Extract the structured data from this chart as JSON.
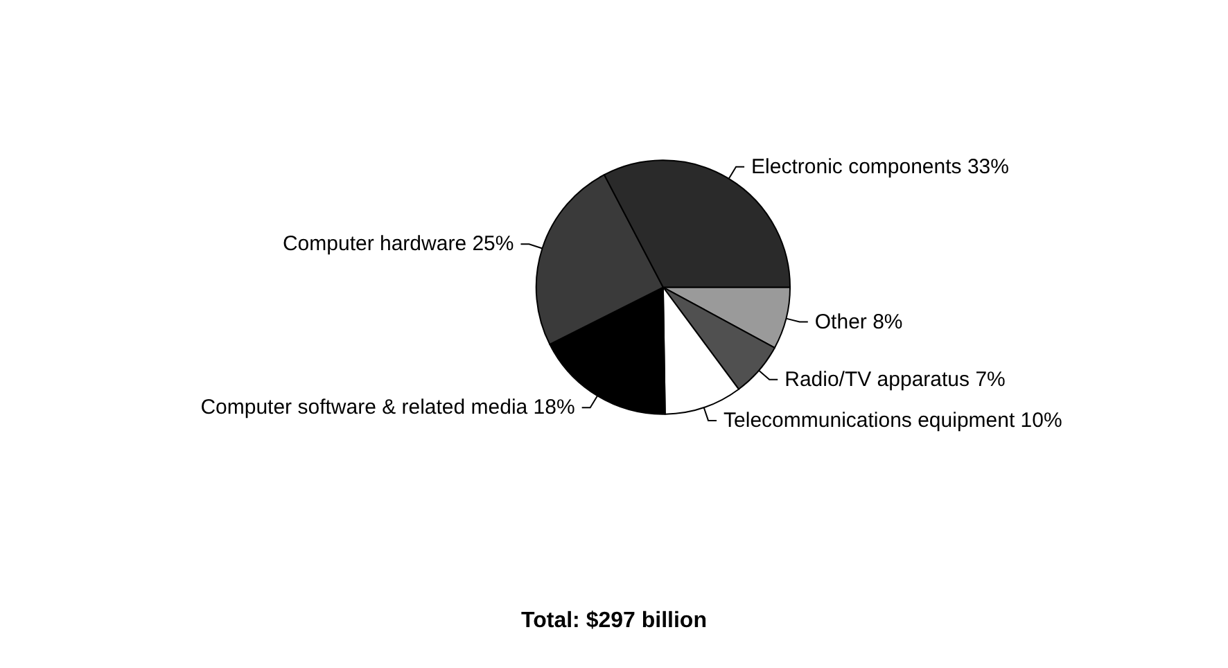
{
  "chart_data": {
    "type": "pie",
    "categories": [
      "Other",
      "Radio/TV apparatus",
      "Telecommunications equipment",
      "Computer software & related media",
      "Computer hardware",
      "Electronic components"
    ],
    "values": [
      8,
      7,
      10,
      18,
      25,
      33
    ],
    "value_labels": [
      "8%",
      "7%",
      "10%",
      "18%",
      "25%",
      "33%"
    ],
    "colors": [
      "#9a9a9a",
      "#505050",
      "#ffffff",
      "#000000",
      "#3a3a3a",
      "#2a2a2a"
    ],
    "annotations": [
      "Total: $297 billion"
    ],
    "legend": false
  }
}
